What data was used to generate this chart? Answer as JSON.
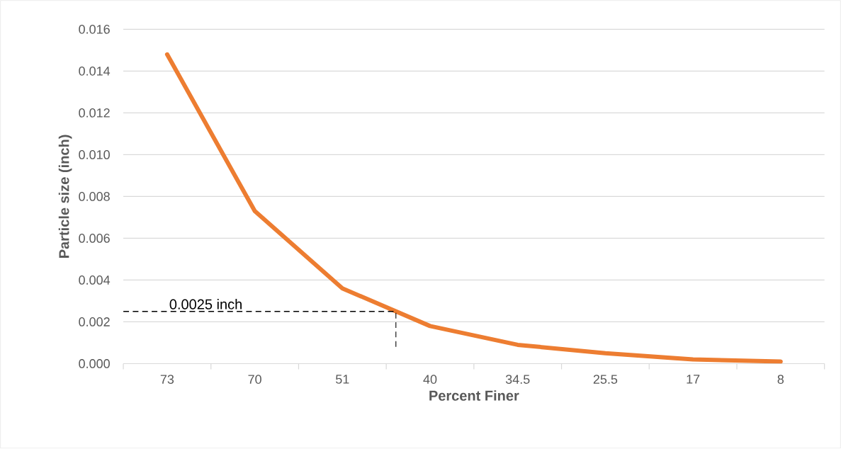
{
  "chart_data": {
    "type": "line",
    "xlabel": "Percent Finer",
    "ylabel": "Particle size (inch)",
    "categories": [
      "73",
      "70",
      "51",
      "40",
      "34.5",
      "25.5",
      "17",
      "8"
    ],
    "series": [
      {
        "color": "#ed7d31",
        "values": [
          0.0148,
          0.0073,
          0.0036,
          0.0018,
          0.0009,
          0.0005,
          0.0002,
          0.0001
        ]
      }
    ],
    "ylim": [
      0,
      0.016
    ],
    "yticks": [
      {
        "value": 0,
        "label": "0.000"
      },
      {
        "value": 0.002,
        "label": "0.002"
      },
      {
        "value": 0.004,
        "label": "0.004"
      },
      {
        "value": 0.006,
        "label": "0.006"
      },
      {
        "value": 0.008,
        "label": "0.008"
      },
      {
        "value": 0.01,
        "label": "0.010"
      },
      {
        "value": 0.012,
        "label": "0.012"
      },
      {
        "value": 0.014,
        "label": "0.014"
      },
      {
        "value": 0.016,
        "label": "0.016"
      }
    ],
    "grid": "y",
    "legend": false,
    "marker": "none",
    "line_style": "solid",
    "ref_lines": [
      {
        "axis": "y",
        "value": 0.0025,
        "label": "0.0025 inch",
        "color": "#000000",
        "line_style": "dashed"
      }
    ]
  }
}
